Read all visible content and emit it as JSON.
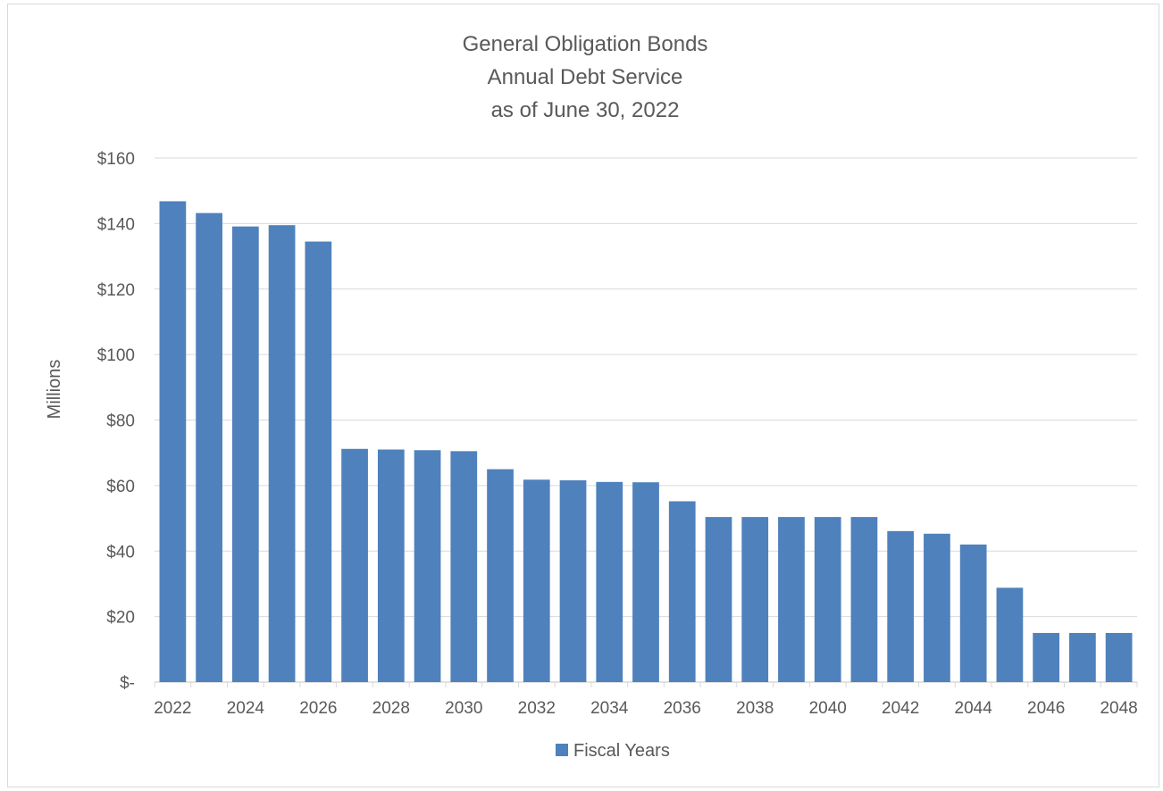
{
  "chart_data": {
    "type": "bar",
    "title": [
      "General Obligation Bonds",
      "Annual Debt Service",
      "as of June 30, 2022"
    ],
    "ylabel": "Millions",
    "xlabel": "",
    "ylim": [
      0,
      160
    ],
    "y_ticks": [
      0,
      20,
      40,
      60,
      80,
      100,
      120,
      140,
      160
    ],
    "y_tick_labels": [
      "$-",
      "$20",
      "$40",
      "$60",
      "$80",
      "$100",
      "$120",
      "$140",
      "$160"
    ],
    "categories": [
      2022,
      2023,
      2024,
      2025,
      2026,
      2027,
      2028,
      2029,
      2030,
      2031,
      2032,
      2033,
      2034,
      2035,
      2036,
      2037,
      2038,
      2039,
      2040,
      2041,
      2042,
      2043,
      2044,
      2045,
      2046,
      2047,
      2048
    ],
    "x_tick_labels": [
      "2022",
      "2024",
      "2026",
      "2028",
      "2030",
      "2032",
      "2034",
      "2036",
      "2038",
      "2040",
      "2042",
      "2044",
      "2046",
      "2048"
    ],
    "series": [
      {
        "name": "Fiscal Years",
        "color": "#4f81bd",
        "values": [
          146.8,
          143.2,
          139.1,
          139.5,
          134.5,
          71.2,
          71.0,
          70.8,
          70.5,
          65.0,
          61.8,
          61.6,
          61.1,
          61.0,
          55.2,
          50.4,
          50.4,
          50.4,
          50.4,
          50.4,
          46.1,
          45.3,
          42.0,
          28.8,
          15.0,
          15.0,
          15.0
        ]
      }
    ],
    "grid": true,
    "gridline_color": "#d9d9d9",
    "legend_position": "bottom"
  }
}
